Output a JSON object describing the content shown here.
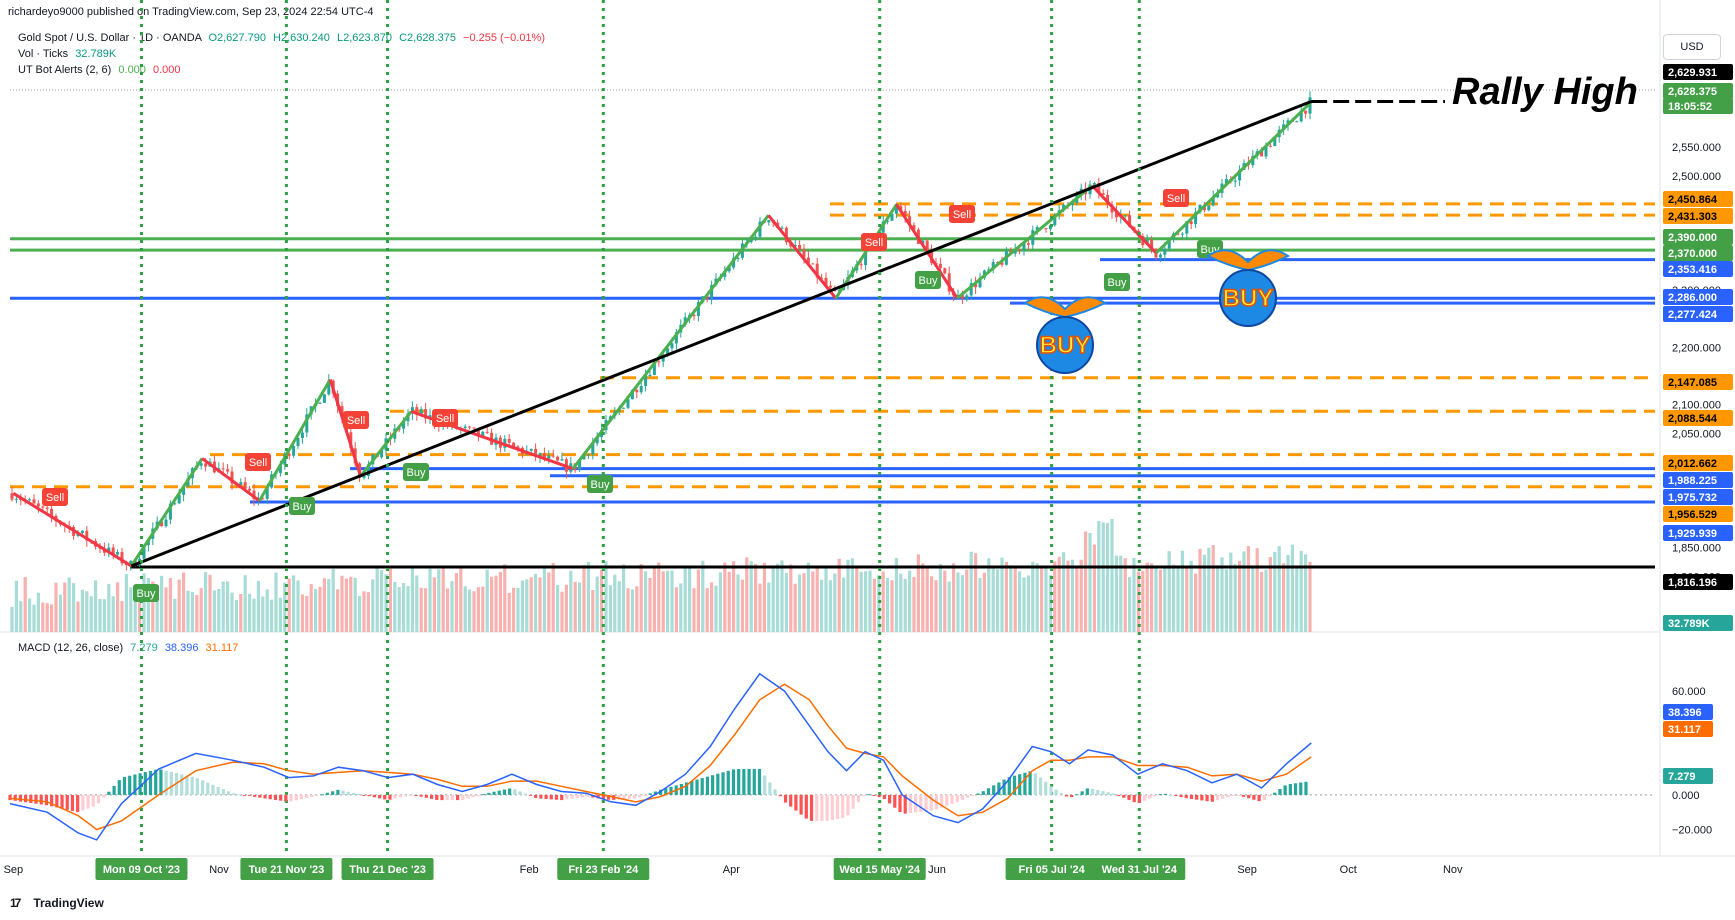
{
  "header": {
    "published_line": "richardeyo9000 published on TradingView.com, Sep 23, 2024 22:54 UTC-4",
    "symbol_line": {
      "name": "Gold Spot / U.S. Dollar · 1D · OANDA",
      "open": "O2,627.790",
      "high": "H2,630.240",
      "low": "L2,623.870",
      "close": "C2,628.375",
      "change": "−0.255 (−0.01%)"
    },
    "vol_line": {
      "label": "Vol · Ticks",
      "value": "32.789K"
    },
    "utbot_line": {
      "label": "UT Bot Alerts (2, 6)",
      "v1": "0.000",
      "v2": "0.000"
    },
    "macd_line": {
      "label": "MACD (12, 26, close)",
      "hist": "7.279",
      "macd": "38.396",
      "signal": "31.117"
    },
    "currency_button": "USD",
    "brand": "TradingView"
  },
  "colors": {
    "up": "#26a69a",
    "down": "#ef5350",
    "orange": "#ff9800",
    "blue": "#2962ff",
    "green_line": "#4caf50",
    "red_line": "#f23645",
    "black": "#000000",
    "macd": "#2962ff",
    "signal": "#ff6d00"
  },
  "chart_data": [
    {
      "type": "candlestick",
      "title": "Gold Spot / U.S. Dollar · 1D · OANDA",
      "annotation_text": "Rally High",
      "x_ticks": [
        "Sep",
        "Nov",
        "Feb",
        "Apr",
        "Jun",
        "Sep",
        "Oct",
        "Nov"
      ],
      "date_markers": [
        "Mon 09 Oct '23",
        "Tue 21 Nov '23",
        "Thu 21 Dec '23",
        "Fri 23 Feb '24",
        "Wed 15 May '24",
        "Fri 05 Jul '24",
        "Wed 31 Jul '24"
      ],
      "y_ticks": [
        "2,550.000",
        "2,500.000",
        "2,300.000",
        "2,200.000",
        "2,100.000",
        "2,050.000",
        "1,850.000",
        "1,800.000"
      ],
      "ylim": [
        1790,
        2650
      ],
      "price_labels": [
        {
          "value": "2,629.931",
          "style": "black"
        },
        {
          "value": "2,628.375",
          "style": "green"
        },
        {
          "value": "18:05:52",
          "style": "green"
        },
        {
          "value": "2,450.864",
          "style": "orange"
        },
        {
          "value": "2,431.303",
          "style": "orange"
        },
        {
          "value": "2,390.000",
          "style": "green"
        },
        {
          "value": "2,370.000",
          "style": "green"
        },
        {
          "value": "2,353.416",
          "style": "blue"
        },
        {
          "value": "2,286.000",
          "style": "blue"
        },
        {
          "value": "2,277.424",
          "style": "blue"
        },
        {
          "value": "2,147.085",
          "style": "orange"
        },
        {
          "value": "2,088.544",
          "style": "orange"
        },
        {
          "value": "2,012.662",
          "style": "orange"
        },
        {
          "value": "1,988.225",
          "style": "blue"
        },
        {
          "value": "1,975.732",
          "style": "blue"
        },
        {
          "value": "1,956.529",
          "style": "orange"
        },
        {
          "value": "1,929.939",
          "style": "blue"
        },
        {
          "value": "1,816.196",
          "style": "black"
        },
        {
          "value": "32.789K",
          "style": "teal"
        }
      ],
      "horizontal_levels": [
        {
          "value": 2450.864,
          "style": "orange-dashed"
        },
        {
          "value": 2431.303,
          "style": "orange-dashed"
        },
        {
          "value": 2390.0,
          "style": "green"
        },
        {
          "value": 2370.0,
          "style": "green"
        },
        {
          "value": 2353.416,
          "style": "blue"
        },
        {
          "value": 2286.0,
          "style": "blue"
        },
        {
          "value": 2277.424,
          "style": "blue"
        },
        {
          "value": 2147.085,
          "style": "orange-dashed"
        },
        {
          "value": 2088.544,
          "style": "orange-dashed"
        },
        {
          "value": 2012.662,
          "style": "orange-dashed"
        },
        {
          "value": 1988.225,
          "style": "blue"
        },
        {
          "value": 1975.732,
          "style": "blue"
        },
        {
          "value": 1956.529,
          "style": "orange-dashed"
        },
        {
          "value": 1929.939,
          "style": "blue"
        },
        {
          "value": 1816.196,
          "style": "black"
        }
      ],
      "signals": [
        {
          "label": "Sell",
          "type": "sell"
        },
        {
          "label": "Buy",
          "type": "buy"
        },
        {
          "label": "Sell",
          "type": "sell"
        },
        {
          "label": "Buy",
          "type": "buy"
        },
        {
          "label": "Sell",
          "type": "sell"
        },
        {
          "label": "Buy",
          "type": "buy"
        },
        {
          "label": "Sell",
          "type": "sell"
        },
        {
          "label": "Buy",
          "type": "buy"
        },
        {
          "label": "Sell",
          "type": "sell"
        },
        {
          "label": "Buy",
          "type": "buy"
        },
        {
          "label": "Sell",
          "type": "sell"
        },
        {
          "label": "Buy",
          "type": "buy"
        },
        {
          "label": "Sell",
          "type": "sell"
        },
        {
          "label": "Buy",
          "type": "buy"
        }
      ],
      "stickers": [
        "BUY",
        "BUY"
      ],
      "swing_points": [
        {
          "date": "2023-09-01",
          "price": 1945
        },
        {
          "date": "2023-10-06",
          "price": 1818
        },
        {
          "date": "2023-10-27",
          "price": 2006
        },
        {
          "date": "2023-11-13",
          "price": 1932
        },
        {
          "date": "2023-12-04",
          "price": 2144
        },
        {
          "date": "2023-12-13",
          "price": 1975
        },
        {
          "date": "2023-12-28",
          "price": 2088
        },
        {
          "date": "2024-02-14",
          "price": 1988
        },
        {
          "date": "2024-04-12",
          "price": 2431
        },
        {
          "date": "2024-05-02",
          "price": 2286
        },
        {
          "date": "2024-05-20",
          "price": 2450
        },
        {
          "date": "2024-06-07",
          "price": 2286
        },
        {
          "date": "2024-07-17",
          "price": 2483
        },
        {
          "date": "2024-08-05",
          "price": 2365
        },
        {
          "date": "2024-09-20",
          "price": 2629
        }
      ],
      "trend_line": [
        {
          "date": "2023-10-06",
          "price": 1818
        },
        {
          "date": "2024-09-20",
          "price": 2629.931
        }
      ]
    },
    {
      "type": "bar",
      "title": "Vol · Ticks",
      "last_value": "32.789K"
    },
    {
      "type": "line",
      "title": "MACD (12, 26, close)",
      "y_ticks": [
        "60.000",
        "40.000",
        "0.000",
        "−20.000"
      ],
      "ylim": [
        -33,
        78
      ],
      "series": [
        {
          "name": "MACD",
          "last": "38.396"
        },
        {
          "name": "Signal",
          "last": "31.117"
        },
        {
          "name": "Histogram",
          "last": "7.279"
        }
      ],
      "macd_points": [
        [
          0,
          -5
        ],
        [
          30,
          -10
        ],
        [
          55,
          -22
        ],
        [
          70,
          -26
        ],
        [
          90,
          -5
        ],
        [
          120,
          15
        ],
        [
          150,
          24
        ],
        [
          180,
          20
        ],
        [
          205,
          16
        ],
        [
          225,
          10
        ],
        [
          245,
          11
        ],
        [
          265,
          16
        ],
        [
          285,
          14
        ],
        [
          305,
          10
        ],
        [
          325,
          12
        ],
        [
          345,
          6
        ],
        [
          365,
          2
        ],
        [
          385,
          6
        ],
        [
          405,
          12
        ],
        [
          425,
          6
        ],
        [
          445,
          2
        ],
        [
          465,
          1
        ],
        [
          485,
          -4
        ],
        [
          505,
          -6
        ],
        [
          525,
          2
        ],
        [
          545,
          12
        ],
        [
          565,
          28
        ],
        [
          585,
          50
        ],
        [
          605,
          70
        ],
        [
          625,
          60
        ],
        [
          645,
          40
        ],
        [
          660,
          25
        ],
        [
          675,
          14
        ],
        [
          690,
          25
        ],
        [
          705,
          20
        ],
        [
          720,
          0
        ],
        [
          745,
          -12
        ],
        [
          765,
          -16
        ],
        [
          785,
          -8
        ],
        [
          805,
          8
        ],
        [
          825,
          28
        ],
        [
          840,
          25
        ],
        [
          855,
          18
        ],
        [
          870,
          26
        ],
        [
          890,
          23
        ],
        [
          910,
          12
        ],
        [
          930,
          18
        ],
        [
          950,
          14
        ],
        [
          970,
          7
        ],
        [
          990,
          12
        ],
        [
          1010,
          4
        ],
        [
          1030,
          18
        ],
        [
          1050,
          30
        ]
      ],
      "signal_points": [
        [
          0,
          -2
        ],
        [
          30,
          -4
        ],
        [
          55,
          -12
        ],
        [
          70,
          -20
        ],
        [
          90,
          -15
        ],
        [
          120,
          0
        ],
        [
          150,
          14
        ],
        [
          180,
          19
        ],
        [
          205,
          18
        ],
        [
          225,
          14
        ],
        [
          245,
          12
        ],
        [
          265,
          13
        ],
        [
          285,
          14
        ],
        [
          305,
          13
        ],
        [
          325,
          12
        ],
        [
          345,
          9
        ],
        [
          365,
          5
        ],
        [
          385,
          5
        ],
        [
          405,
          8
        ],
        [
          425,
          8
        ],
        [
          445,
          5
        ],
        [
          465,
          2
        ],
        [
          485,
          -1
        ],
        [
          505,
          -4
        ],
        [
          525,
          -1
        ],
        [
          545,
          5
        ],
        [
          565,
          17
        ],
        [
          585,
          35
        ],
        [
          605,
          55
        ],
        [
          625,
          64
        ],
        [
          645,
          55
        ],
        [
          660,
          40
        ],
        [
          675,
          27
        ],
        [
          690,
          24
        ],
        [
          705,
          22
        ],
        [
          720,
          11
        ],
        [
          745,
          -3
        ],
        [
          765,
          -12
        ],
        [
          785,
          -10
        ],
        [
          805,
          -2
        ],
        [
          825,
          14
        ],
        [
          840,
          20
        ],
        [
          855,
          20
        ],
        [
          870,
          22
        ],
        [
          890,
          22
        ],
        [
          910,
          17
        ],
        [
          930,
          17
        ],
        [
          950,
          16
        ],
        [
          970,
          11
        ],
        [
          990,
          12
        ],
        [
          1010,
          8
        ],
        [
          1030,
          12
        ],
        [
          1050,
          22
        ]
      ],
      "x_range": [
        0,
        1050
      ]
    }
  ]
}
